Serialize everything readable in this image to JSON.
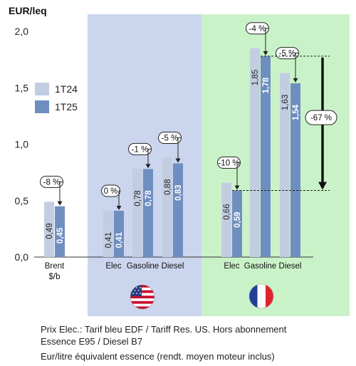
{
  "chart_data": {
    "type": "bar",
    "ylabel": "EUR/leq",
    "ylim": [
      0,
      2.0
    ],
    "yticks": [
      "0,0",
      "0,5",
      "1,0",
      "1,5",
      "2,0"
    ],
    "legend_position": "left",
    "series": [
      {
        "name": "1T24",
        "color": "#c2cde1"
      },
      {
        "name": "1T25",
        "color": "#6f8ec0"
      }
    ],
    "groups": [
      {
        "label": "Brent",
        "sublabel": "$/b",
        "region": "none",
        "v1": 0.49,
        "v2": 0.45,
        "v1_label": "0,49",
        "v2_label": "0,45",
        "change": "-8 %"
      },
      {
        "label": "Elec",
        "sublabel": "",
        "region": "us",
        "v1": 0.41,
        "v2": 0.41,
        "v1_label": "0,41",
        "v2_label": "0,41",
        "change": "0 %"
      },
      {
        "label": "Gasoline",
        "sublabel": "",
        "region": "us",
        "v1": 0.78,
        "v2": 0.78,
        "v1_label": "0,78",
        "v2_label": "0,78",
        "change": "-1 %"
      },
      {
        "label": "Diesel",
        "sublabel": "",
        "region": "us",
        "v1": 0.88,
        "v2": 0.83,
        "v1_label": "0,88",
        "v2_label": "0,83",
        "change": "-5 %"
      },
      {
        "label": "Elec",
        "sublabel": "",
        "region": "fr",
        "v1": 0.66,
        "v2": 0.59,
        "v1_label": "0,66",
        "v2_label": "0,59",
        "change": "-10 %"
      },
      {
        "label": "Gasoline",
        "sublabel": "",
        "region": "fr",
        "v1": 1.85,
        "v2": 1.78,
        "v1_label": "1,85",
        "v2_label": "1,78",
        "change": "-4 %"
      },
      {
        "label": "Diesel",
        "sublabel": "",
        "region": "fr",
        "v1": 1.63,
        "v2": 1.54,
        "v1_label": "1,63",
        "v2_label": "1,54",
        "change": "-5 %"
      }
    ],
    "annotation": {
      "label": "-67 %",
      "from": 1.78,
      "to": 0.59
    },
    "colors": {
      "us_panel": "#cbd5ee",
      "fr_panel": "#caf2c8"
    }
  },
  "footnotes": {
    "line1": "Prix Elec.: Tarif bleu EDF / Tariff Res. US. Hors abonnement",
    "line2": "Essence E95 / Diesel B7",
    "line3": "Eur/litre équivalent essence (rendt. moyen moteur inclus)"
  },
  "flags": {
    "us": "us-flag-icon",
    "fr": "fr-flag-icon"
  }
}
